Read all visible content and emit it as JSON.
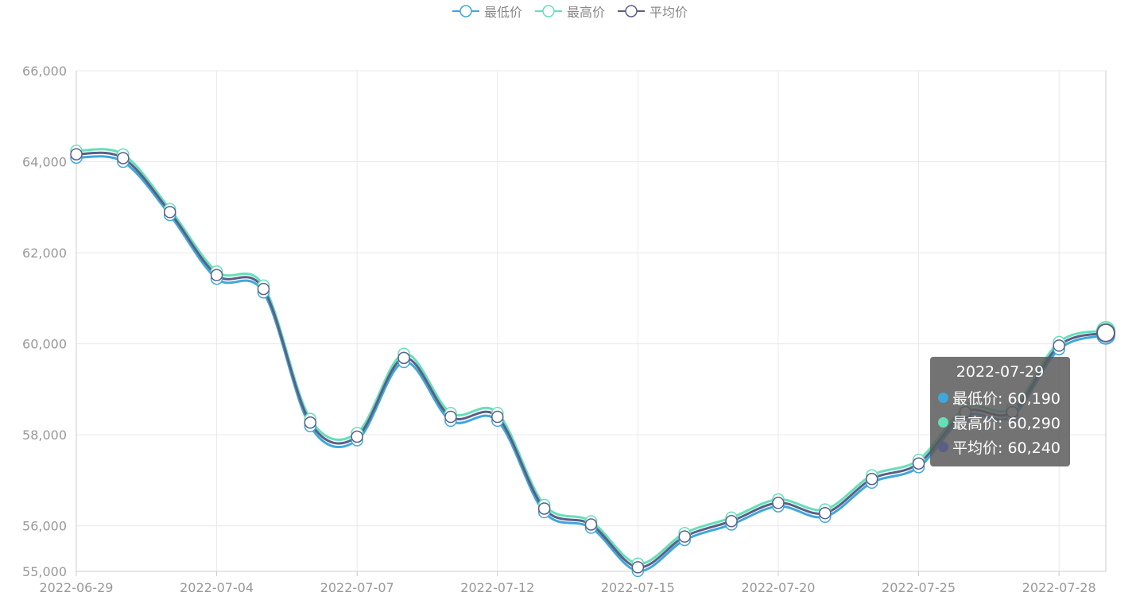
{
  "legend": [
    {
      "name": "最低价",
      "color": "#3fa7dc"
    },
    {
      "name": "最高价",
      "color": "#64e0b9"
    },
    {
      "name": "平均价",
      "color": "#5b5f86"
    }
  ],
  "tooltip": {
    "date": "2022-07-29",
    "rows": [
      {
        "label": "最低价: 60,190",
        "color": "#3fa7dc"
      },
      {
        "label": "最高价: 60,290",
        "color": "#64e0b9"
      },
      {
        "label": "平均价: 60,240",
        "color": "#5b5f86"
      }
    ]
  },
  "chart_data": {
    "type": "line",
    "x": [
      "2022-06-29",
      "2022-06-30",
      "2022-07-01",
      "2022-07-04",
      "2022-07-05",
      "2022-07-06",
      "2022-07-07",
      "2022-07-08",
      "2022-07-11",
      "2022-07-12",
      "2022-07-13",
      "2022-07-14",
      "2022-07-15",
      "2022-07-18",
      "2022-07-19",
      "2022-07-20",
      "2022-07-21",
      "2022-07-22",
      "2022-07-25",
      "2022-07-26",
      "2022-07-27",
      "2022-07-28",
      "2022-07-29"
    ],
    "xticks": [
      "2022-06-29",
      "2022-07-04",
      "2022-07-07",
      "2022-07-12",
      "2022-07-15",
      "2022-07-20",
      "2022-07-25",
      "2022-07-28"
    ],
    "yticks": [
      "55,000",
      "56,000",
      "58,000",
      "60,000",
      "62,000",
      "64,000",
      "66,000"
    ],
    "ylim": [
      55000,
      66000
    ],
    "grid": true,
    "legend_position": "top-center",
    "series": [
      {
        "name": "最低价",
        "color": "#3fa7dc",
        "values": [
          64090,
          64000,
          62830,
          61430,
          61130,
          58190,
          57880,
          59600,
          58310,
          58310,
          56300,
          55960,
          55010,
          55690,
          56030,
          56430,
          56200,
          56950,
          57290,
          58410,
          58410,
          59880,
          60190
        ]
      },
      {
        "name": "最高价",
        "color": "#64e0b9",
        "values": [
          64240,
          64160,
          62960,
          61590,
          61280,
          58350,
          58040,
          59780,
          58480,
          58480,
          56460,
          56100,
          55170,
          55840,
          56180,
          56580,
          56360,
          57110,
          57450,
          58590,
          58590,
          60040,
          60290
        ]
      },
      {
        "name": "平均价",
        "color": "#5b5f86",
        "values": [
          64165,
          64080,
          62895,
          61510,
          61205,
          58270,
          57960,
          59690,
          58395,
          58395,
          56380,
          56030,
          55090,
          55765,
          56105,
          56505,
          56280,
          57030,
          57370,
          58500,
          58500,
          59960,
          60240
        ]
      }
    ]
  }
}
